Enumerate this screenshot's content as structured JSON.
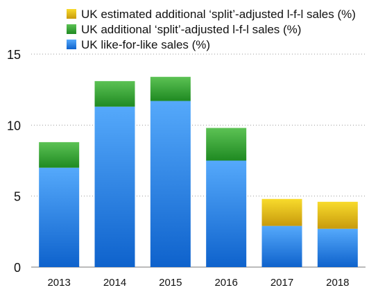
{
  "chart_data": {
    "type": "bar",
    "stacked": true,
    "title": "",
    "xlabel": "",
    "ylabel": "",
    "categories": [
      "2013",
      "2014",
      "2015",
      "2016",
      "2017",
      "2018"
    ],
    "ylim": [
      0,
      15
    ],
    "yticks": [
      "0",
      "5",
      "10",
      "15"
    ],
    "grid": true,
    "legend_position": "top",
    "series": [
      {
        "name": "UK like-for-like sales (%)",
        "values": [
          7.0,
          11.3,
          11.7,
          7.5,
          2.9,
          2.7
        ],
        "color": "#2f86e6"
      },
      {
        "name": "UK additional ‘split’-adjusted l-f-l sales (%)",
        "values": [
          1.8,
          1.8,
          1.7,
          2.3,
          0,
          0
        ],
        "color": "#3fa83a"
      },
      {
        "name": "UK estimated additional ‘split’-adjusted l-f-l sales (%)",
        "values": [
          0,
          0,
          0,
          0,
          1.9,
          1.9
        ],
        "color": "#e8c51c"
      }
    ]
  }
}
